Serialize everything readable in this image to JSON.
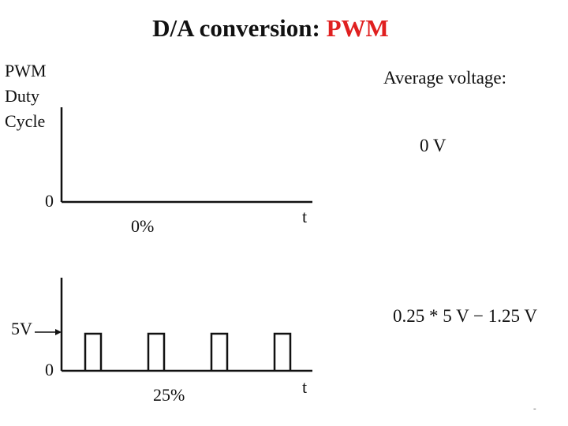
{
  "title": {
    "prefix": "D/A conversion: ",
    "accent": "PWM",
    "accent_color": "#e02020"
  },
  "y_axis_label": [
    "PWM",
    "Duty",
    "Cycle"
  ],
  "average_voltage": {
    "heading": "Average voltage:",
    "plot1_value": "0 V",
    "plot2_value": "0.25 * 5 V − 1.25 V"
  },
  "plots": [
    {
      "zero_label": "0",
      "time_label": "t",
      "duty_label": "0%",
      "duty_cycle": 0.0
    },
    {
      "zero_label": "0",
      "high_label": "5V",
      "time_label": "t",
      "duty_label": "25%",
      "duty_cycle": 0.25,
      "pulse_count": 4
    }
  ],
  "slide_number": "-"
}
